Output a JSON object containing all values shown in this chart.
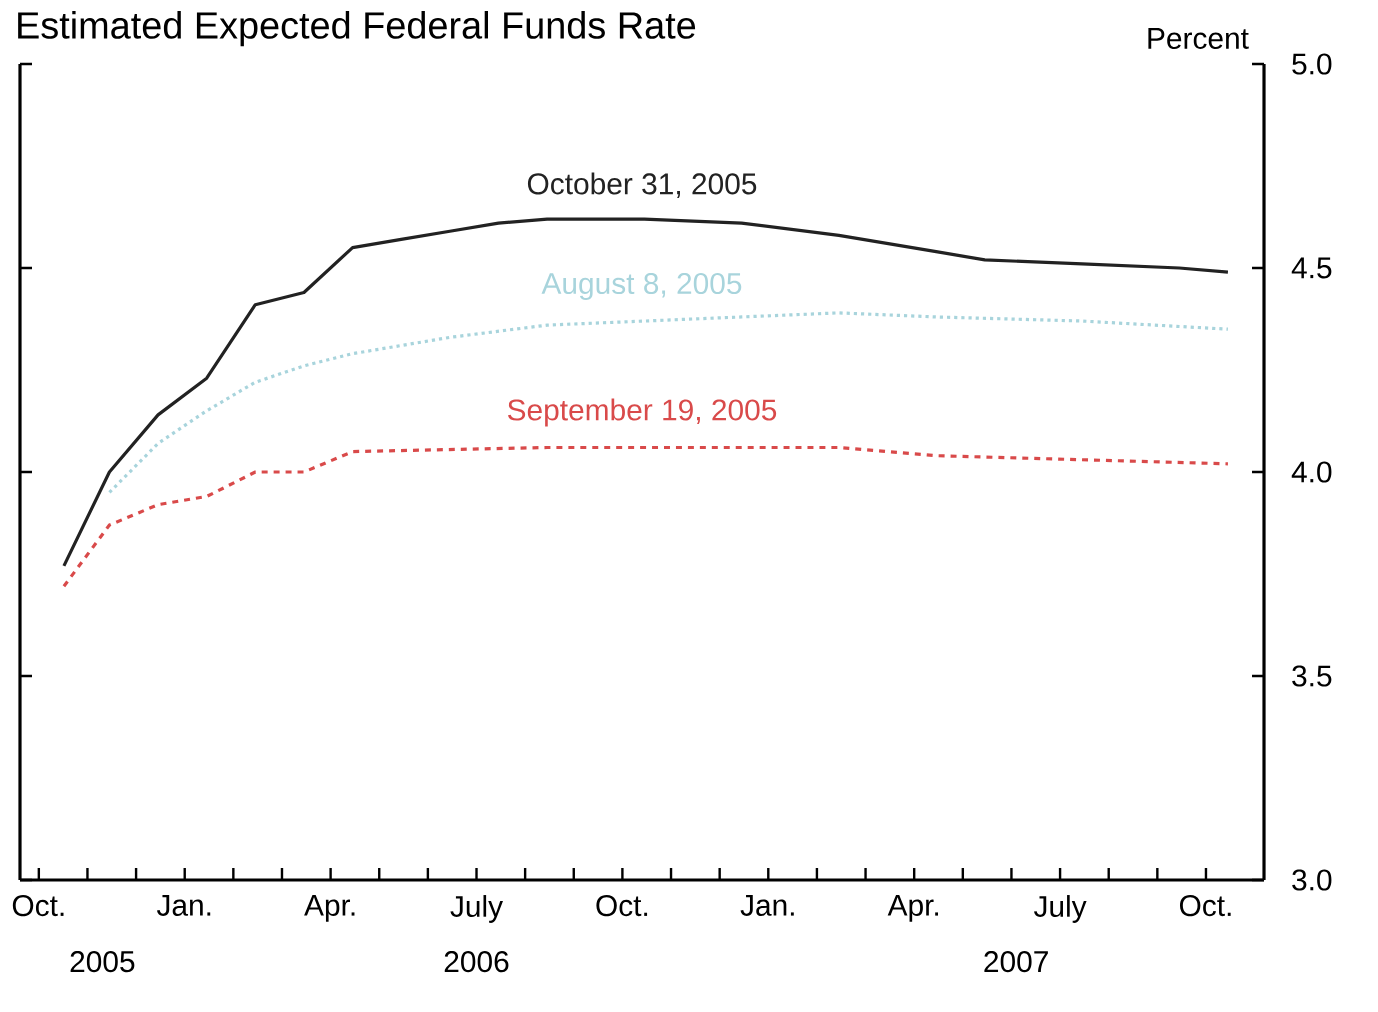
{
  "chart_data": {
    "type": "line",
    "title": "Estimated Expected Federal Funds Rate",
    "ylabel": "Percent",
    "marker": "none",
    "legend": false,
    "xlim": [
      "2005-09-20",
      "2007-11-07"
    ],
    "ylim": [
      3,
      5
    ],
    "yticks": [
      {
        "value": 3,
        "label": "3.0"
      },
      {
        "value": 3.5,
        "label": "3.5"
      },
      {
        "value": 4,
        "label": "4.0"
      },
      {
        "value": 4.5,
        "label": "4.5"
      },
      {
        "value": 5,
        "label": "5.0"
      }
    ],
    "xticks": [
      {
        "value": "2005-10",
        "label": "Oct."
      },
      {
        "value": "2005-11",
        "label": null
      },
      {
        "value": "2005-12",
        "label": null
      },
      {
        "value": "2006-01",
        "label": "Jan."
      },
      {
        "value": "2006-02",
        "label": null
      },
      {
        "value": "2006-03",
        "label": null
      },
      {
        "value": "2006-04",
        "label": "Apr."
      },
      {
        "value": "2006-05",
        "label": null
      },
      {
        "value": "2006-06",
        "label": null
      },
      {
        "value": "2006-07",
        "label": "July"
      },
      {
        "value": "2006-08",
        "label": null
      },
      {
        "value": "2006-09",
        "label": null
      },
      {
        "value": "2006-10",
        "label": "Oct."
      },
      {
        "value": "2006-11",
        "label": null
      },
      {
        "value": "2006-12",
        "label": null
      },
      {
        "value": "2007-01",
        "label": "Jan."
      },
      {
        "value": "2007-02",
        "label": null
      },
      {
        "value": "2007-03",
        "label": null
      },
      {
        "value": "2007-04",
        "label": "Apr."
      },
      {
        "value": "2007-05",
        "label": null
      },
      {
        "value": "2007-06",
        "label": null
      },
      {
        "value": "2007-07",
        "label": "July"
      },
      {
        "value": "2007-08",
        "label": null
      },
      {
        "value": "2007-09",
        "label": null
      },
      {
        "value": "2007-10",
        "label": "Oct."
      }
    ],
    "annotations": [
      "2005",
      "2006",
      "2007"
    ],
    "series": [
      {
        "name": "October 31, 2005",
        "color": "#222222",
        "line_style": "solid",
        "x": [
          "2005-10-17",
          "2005-11-15",
          "2005-12-15",
          "2006-01-15",
          "2006-02-15",
          "2006-03-15",
          "2006-04-15",
          "2006-05-15",
          "2006-06-15",
          "2006-07-15",
          "2006-08-15",
          "2006-10-15",
          "2006-12-15",
          "2007-02-15",
          "2007-04-15",
          "2007-05-15",
          "2007-07-15",
          "2007-09-15",
          "2007-10-15"
        ],
        "values": [
          3.77,
          4.0,
          4.14,
          4.23,
          4.41,
          4.44,
          4.55,
          4.57,
          4.59,
          4.61,
          4.62,
          4.62,
          4.61,
          4.58,
          4.54,
          4.52,
          4.51,
          4.5,
          4.49
        ]
      },
      {
        "name": "August 8, 2005",
        "color": "#a8d4dc",
        "line_style": "dotted",
        "x": [
          "2005-11-15",
          "2005-12-15",
          "2006-01-15",
          "2006-02-15",
          "2006-03-15",
          "2006-04-15",
          "2006-06-15",
          "2006-08-15",
          "2006-10-15",
          "2006-12-15",
          "2007-02-15",
          "2007-04-15",
          "2007-07-15",
          "2007-10-15"
        ],
        "values": [
          3.95,
          4.07,
          4.15,
          4.22,
          4.26,
          4.29,
          4.33,
          4.36,
          4.37,
          4.38,
          4.39,
          4.38,
          4.37,
          4.35
        ]
      },
      {
        "name": "September 19, 2005",
        "color": "#d94a4a",
        "line_style": "dashed",
        "x": [
          "2005-10-17",
          "2005-11-15",
          "2005-12-15",
          "2006-01-15",
          "2006-02-15",
          "2006-03-15",
          "2006-04-15",
          "2006-08-15",
          "2007-02-15",
          "2007-04-15",
          "2007-10-15"
        ],
        "values": [
          3.72,
          3.87,
          3.92,
          3.94,
          4.0,
          4.0,
          4.05,
          4.06,
          4.06,
          4.04,
          4.02
        ]
      }
    ]
  }
}
